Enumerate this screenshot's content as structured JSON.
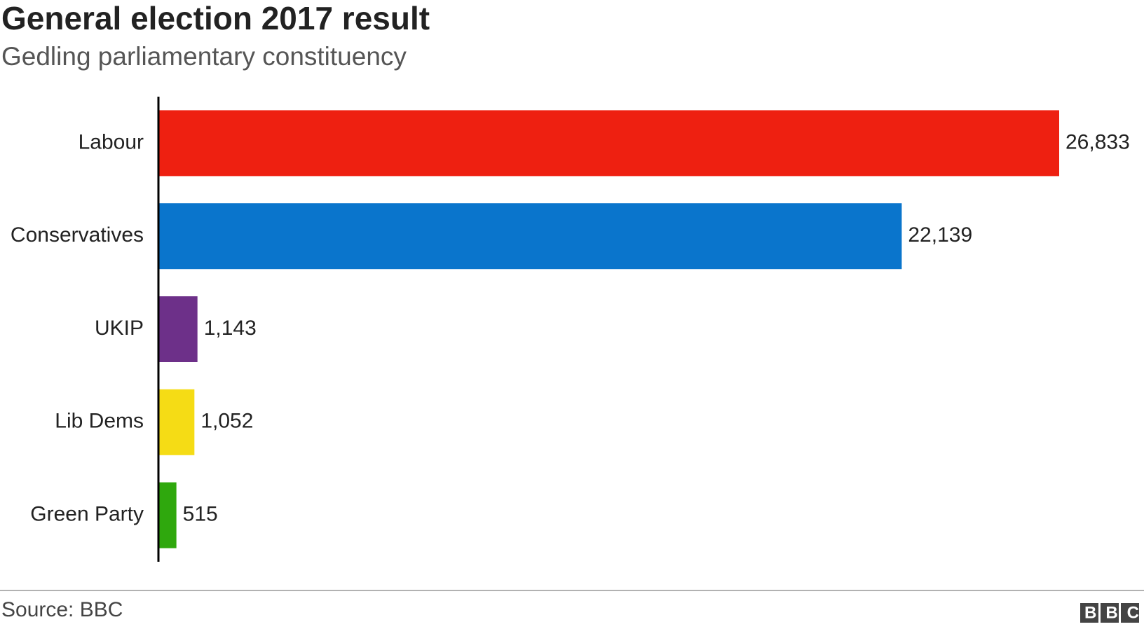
{
  "chart_data": {
    "type": "bar",
    "title": "General election 2017 result",
    "subtitle": "Gedling parliamentary constituency",
    "categories": [
      "Labour",
      "Conservatives",
      "UKIP",
      "Lib Dems",
      "Green Party"
    ],
    "values": [
      26833,
      22139,
      1143,
      1052,
      515
    ],
    "value_labels": [
      "26,833",
      "22,139",
      "1,143",
      "1,052",
      "515"
    ],
    "colors": [
      "#ee2011",
      "#0a75cc",
      "#6d3089",
      "#f5dc15",
      "#2fa80d"
    ],
    "source": "Source: BBC",
    "logo": "BBC"
  }
}
